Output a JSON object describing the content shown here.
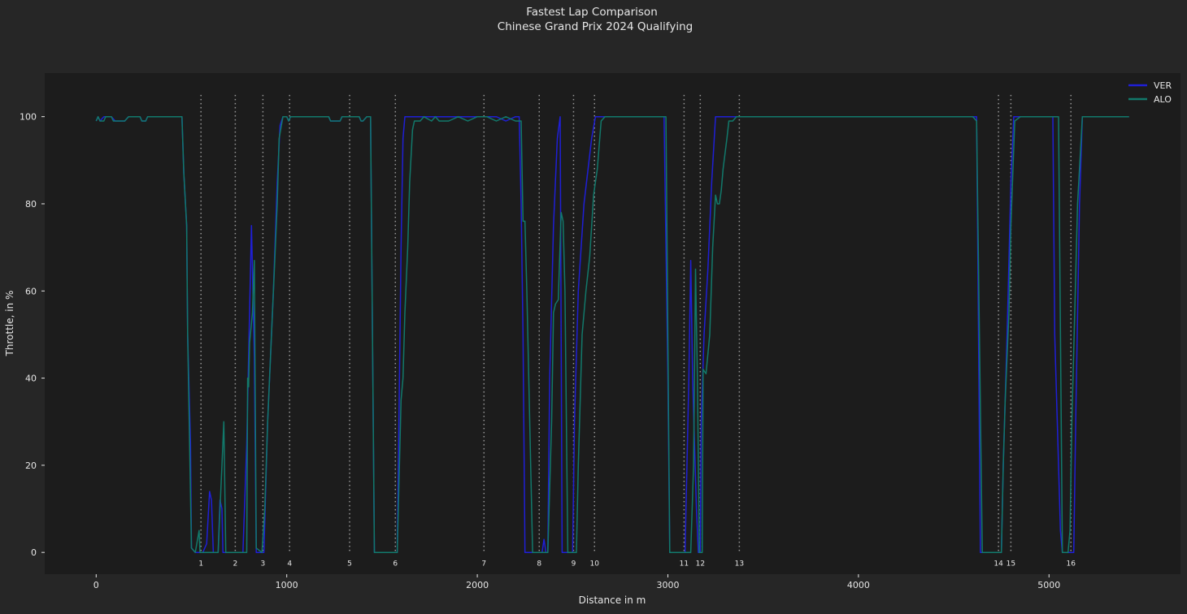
{
  "chart_data": {
    "type": "line",
    "title": "Fastest Lap Comparison",
    "subtitle": "Chinese Grand Prix 2024 Qualifying",
    "xlabel": "Distance in m",
    "ylabel": "Throttle, in %",
    "xlim": [
      -270,
      5690
    ],
    "ylim": [
      -5,
      110
    ],
    "x_ticks": [
      0,
      1000,
      2000,
      3000,
      4000,
      5000
    ],
    "y_ticks": [
      0,
      20,
      40,
      60,
      80,
      100
    ],
    "grid": false,
    "legend_position": "top-right",
    "colors": {
      "background": "#262626",
      "plot_background": "#1c1c1c",
      "text": "#e6e6e6",
      "corner_line": "#9a9a9a"
    },
    "series": [
      {
        "name": "VER",
        "color": "#1f1fd6",
        "points": [
          [
            0,
            99
          ],
          [
            10,
            100
          ],
          [
            20,
            99
          ],
          [
            40,
            100
          ],
          [
            80,
            100
          ],
          [
            100,
            99
          ],
          [
            150,
            99
          ],
          [
            170,
            100
          ],
          [
            230,
            100
          ],
          [
            240,
            99
          ],
          [
            260,
            99
          ],
          [
            270,
            100
          ],
          [
            320,
            100
          ],
          [
            450,
            100
          ],
          [
            460,
            87
          ],
          [
            475,
            75
          ],
          [
            480,
            50
          ],
          [
            495,
            25
          ],
          [
            500,
            1
          ],
          [
            520,
            0
          ],
          [
            560,
            0
          ],
          [
            580,
            2
          ],
          [
            595,
            14
          ],
          [
            605,
            12
          ],
          [
            615,
            0
          ],
          [
            640,
            0
          ],
          [
            650,
            12
          ],
          [
            660,
            10
          ],
          [
            665,
            0
          ],
          [
            770,
            0
          ],
          [
            790,
            25
          ],
          [
            800,
            45
          ],
          [
            815,
            75
          ],
          [
            830,
            45
          ],
          [
            840,
            0
          ],
          [
            880,
            0
          ],
          [
            900,
            30
          ],
          [
            930,
            60
          ],
          [
            950,
            85
          ],
          [
            965,
            98
          ],
          [
            980,
            100
          ],
          [
            1000,
            100
          ],
          [
            1010,
            99
          ],
          [
            1020,
            100
          ],
          [
            1100,
            100
          ],
          [
            1220,
            100
          ],
          [
            1230,
            99
          ],
          [
            1280,
            99
          ],
          [
            1290,
            100
          ],
          [
            1380,
            100
          ],
          [
            1390,
            99
          ],
          [
            1400,
            99
          ],
          [
            1420,
            100
          ],
          [
            1440,
            100
          ],
          [
            1460,
            0
          ],
          [
            1580,
            0
          ],
          [
            1590,
            35
          ],
          [
            1600,
            70
          ],
          [
            1610,
            95
          ],
          [
            1620,
            100
          ],
          [
            1650,
            100
          ],
          [
            1700,
            100
          ],
          [
            1800,
            100
          ],
          [
            2000,
            100
          ],
          [
            2100,
            100
          ],
          [
            2150,
            99
          ],
          [
            2200,
            100
          ],
          [
            2220,
            100
          ],
          [
            2230,
            80
          ],
          [
            2240,
            50
          ],
          [
            2250,
            0
          ],
          [
            2340,
            0
          ],
          [
            2350,
            3
          ],
          [
            2360,
            0
          ],
          [
            2370,
            0
          ],
          [
            2380,
            40
          ],
          [
            2400,
            75
          ],
          [
            2420,
            95
          ],
          [
            2435,
            100
          ],
          [
            2445,
            0
          ],
          [
            2500,
            0
          ],
          [
            2510,
            30
          ],
          [
            2530,
            60
          ],
          [
            2560,
            80
          ],
          [
            2600,
            95
          ],
          [
            2620,
            100
          ],
          [
            2650,
            100
          ],
          [
            2700,
            100
          ],
          [
            2800,
            100
          ],
          [
            2900,
            100
          ],
          [
            2980,
            100
          ],
          [
            3000,
            40
          ],
          [
            3010,
            0
          ],
          [
            3090,
            0
          ],
          [
            3110,
            40
          ],
          [
            3120,
            67
          ],
          [
            3130,
            40
          ],
          [
            3150,
            10
          ],
          [
            3160,
            0
          ],
          [
            3170,
            0
          ],
          [
            3175,
            30
          ],
          [
            3190,
            50
          ],
          [
            3210,
            65
          ],
          [
            3230,
            85
          ],
          [
            3250,
            100
          ],
          [
            3300,
            100
          ],
          [
            3400,
            100
          ],
          [
            3500,
            100
          ],
          [
            3700,
            100
          ],
          [
            3800,
            100
          ],
          [
            3850,
            100
          ],
          [
            3900,
            100
          ],
          [
            4000,
            100
          ],
          [
            4200,
            100
          ],
          [
            4300,
            100
          ],
          [
            4400,
            100
          ],
          [
            4500,
            100
          ],
          [
            4600,
            100
          ],
          [
            4620,
            100
          ],
          [
            4640,
            0
          ],
          [
            4750,
            0
          ],
          [
            4760,
            20
          ],
          [
            4780,
            50
          ],
          [
            4800,
            85
          ],
          [
            4815,
            100
          ],
          [
            4900,
            100
          ],
          [
            4950,
            100
          ],
          [
            5000,
            100
          ],
          [
            5020,
            100
          ],
          [
            5030,
            50
          ],
          [
            5050,
            20
          ],
          [
            5060,
            5
          ],
          [
            5070,
            0
          ],
          [
            5130,
            0
          ],
          [
            5140,
            30
          ],
          [
            5160,
            80
          ],
          [
            5175,
            100
          ],
          [
            5200,
            100
          ],
          [
            5300,
            100
          ],
          [
            5350,
            100
          ],
          [
            5400,
            100
          ],
          [
            5420,
            100
          ]
        ]
      },
      {
        "name": "ALO",
        "color": "#12796b",
        "points": [
          [
            0,
            99
          ],
          [
            10,
            100
          ],
          [
            20,
            99
          ],
          [
            40,
            99
          ],
          [
            50,
            100
          ],
          [
            80,
            100
          ],
          [
            90,
            99
          ],
          [
            100,
            99
          ],
          [
            150,
            99
          ],
          [
            170,
            100
          ],
          [
            230,
            100
          ],
          [
            240,
            99
          ],
          [
            260,
            99
          ],
          [
            270,
            100
          ],
          [
            320,
            100
          ],
          [
            450,
            100
          ],
          [
            460,
            87
          ],
          [
            475,
            75
          ],
          [
            480,
            50
          ],
          [
            500,
            1
          ],
          [
            520,
            0
          ],
          [
            540,
            5
          ],
          [
            545,
            0
          ],
          [
            640,
            0
          ],
          [
            650,
            10
          ],
          [
            660,
            20
          ],
          [
            670,
            30
          ],
          [
            680,
            0
          ],
          [
            790,
            0
          ],
          [
            795,
            40
          ],
          [
            800,
            38
          ],
          [
            805,
            48
          ],
          [
            820,
            55
          ],
          [
            830,
            67
          ],
          [
            840,
            1
          ],
          [
            870,
            0
          ],
          [
            885,
            10
          ],
          [
            900,
            30
          ],
          [
            930,
            60
          ],
          [
            950,
            80
          ],
          [
            960,
            95
          ],
          [
            980,
            100
          ],
          [
            1000,
            100
          ],
          [
            1010,
            99
          ],
          [
            1020,
            100
          ],
          [
            1100,
            100
          ],
          [
            1220,
            100
          ],
          [
            1230,
            99
          ],
          [
            1280,
            99
          ],
          [
            1290,
            100
          ],
          [
            1380,
            100
          ],
          [
            1390,
            99
          ],
          [
            1400,
            99
          ],
          [
            1420,
            100
          ],
          [
            1440,
            100
          ],
          [
            1460,
            0
          ],
          [
            1580,
            0
          ],
          [
            1600,
            35
          ],
          [
            1610,
            40
          ],
          [
            1620,
            55
          ],
          [
            1635,
            70
          ],
          [
            1645,
            85
          ],
          [
            1660,
            97
          ],
          [
            1670,
            99
          ],
          [
            1700,
            99
          ],
          [
            1720,
            100
          ],
          [
            1760,
            99
          ],
          [
            1780,
            100
          ],
          [
            1800,
            99
          ],
          [
            1850,
            99
          ],
          [
            1900,
            100
          ],
          [
            1950,
            99
          ],
          [
            2000,
            100
          ],
          [
            2050,
            100
          ],
          [
            2100,
            99
          ],
          [
            2150,
            100
          ],
          [
            2200,
            99
          ],
          [
            2230,
            99
          ],
          [
            2240,
            76
          ],
          [
            2250,
            76
          ],
          [
            2260,
            60
          ],
          [
            2290,
            0
          ],
          [
            2370,
            0
          ],
          [
            2390,
            30
          ],
          [
            2400,
            55
          ],
          [
            2410,
            57
          ],
          [
            2425,
            58
          ],
          [
            2440,
            78
          ],
          [
            2450,
            76
          ],
          [
            2460,
            60
          ],
          [
            2475,
            0
          ],
          [
            2520,
            0
          ],
          [
            2530,
            20
          ],
          [
            2550,
            50
          ],
          [
            2570,
            60
          ],
          [
            2590,
            68
          ],
          [
            2610,
            82
          ],
          [
            2630,
            88
          ],
          [
            2650,
            99
          ],
          [
            2670,
            100
          ],
          [
            2700,
            100
          ],
          [
            2800,
            100
          ],
          [
            2900,
            100
          ],
          [
            2990,
            100
          ],
          [
            3010,
            0
          ],
          [
            3120,
            0
          ],
          [
            3135,
            20
          ],
          [
            3145,
            65
          ],
          [
            3155,
            40
          ],
          [
            3165,
            0
          ],
          [
            3180,
            0
          ],
          [
            3185,
            42
          ],
          [
            3200,
            41
          ],
          [
            3220,
            50
          ],
          [
            3235,
            70
          ],
          [
            3250,
            82
          ],
          [
            3260,
            80
          ],
          [
            3270,
            80
          ],
          [
            3280,
            83
          ],
          [
            3290,
            88
          ],
          [
            3310,
            95
          ],
          [
            3320,
            99
          ],
          [
            3340,
            99
          ],
          [
            3360,
            100
          ],
          [
            3400,
            100
          ],
          [
            3600,
            100
          ],
          [
            3700,
            100
          ],
          [
            3800,
            100
          ],
          [
            3900,
            100
          ],
          [
            4000,
            100
          ],
          [
            4500,
            100
          ],
          [
            4600,
            100
          ],
          [
            4620,
            99
          ],
          [
            4650,
            0
          ],
          [
            4750,
            0
          ],
          [
            4760,
            20
          ],
          [
            4770,
            35
          ],
          [
            4790,
            55
          ],
          [
            4800,
            75
          ],
          [
            4820,
            99
          ],
          [
            4850,
            100
          ],
          [
            4900,
            100
          ],
          [
            4950,
            100
          ],
          [
            5000,
            100
          ],
          [
            5050,
            100
          ],
          [
            5070,
            0
          ],
          [
            5100,
            0
          ],
          [
            5110,
            5
          ],
          [
            5120,
            30
          ],
          [
            5150,
            80
          ],
          [
            5175,
            100
          ],
          [
            5200,
            100
          ],
          [
            5300,
            100
          ],
          [
            5350,
            100
          ],
          [
            5400,
            100
          ],
          [
            5420,
            100
          ]
        ]
      }
    ],
    "corners": [
      {
        "label": "1",
        "distance": 550
      },
      {
        "label": "2",
        "distance": 730
      },
      {
        "label": "3",
        "distance": 875
      },
      {
        "label": "4",
        "distance": 1015
      },
      {
        "label": "5",
        "distance": 1330
      },
      {
        "label": "6",
        "distance": 1570
      },
      {
        "label": "7",
        "distance": 2035
      },
      {
        "label": "8",
        "distance": 2325
      },
      {
        "label": "9",
        "distance": 2505
      },
      {
        "label": "10",
        "distance": 2615
      },
      {
        "label": "11",
        "distance": 3085
      },
      {
        "label": "12",
        "distance": 3170
      },
      {
        "label": "13",
        "distance": 3375
      },
      {
        "label": "14",
        "distance": 4735
      },
      {
        "label": "15",
        "distance": 4800
      },
      {
        "label": "16",
        "distance": 5115
      }
    ]
  }
}
